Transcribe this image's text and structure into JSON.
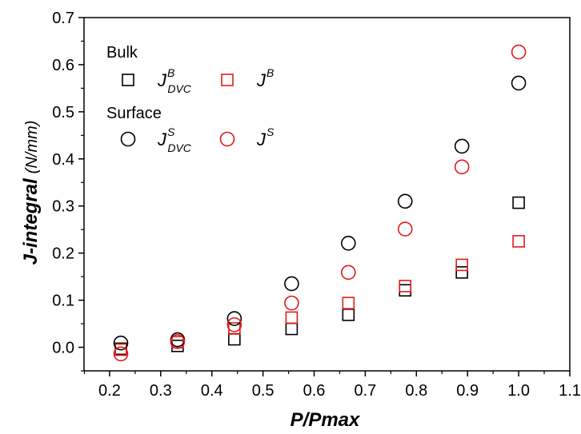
{
  "chart_data": {
    "type": "scatter",
    "xlabel": "P/Pmax",
    "ylabel": "J-integral",
    "ylabel_unit": "(N/mm)",
    "xlim": [
      0.15,
      1.1
    ],
    "ylim": [
      -0.05,
      0.7
    ],
    "xticks": [
      "0.2",
      "0.3",
      "0.4",
      "0.5",
      "0.6",
      "0.7",
      "0.8",
      "0.9",
      "1.0",
      "1.1"
    ],
    "yticks": [
      "0.0",
      "0.1",
      "0.2",
      "0.3",
      "0.4",
      "0.5",
      "0.6",
      "0.7"
    ],
    "grid": false,
    "legend_position": "top-left",
    "legend_groups": [
      {
        "title": "Bulk"
      },
      {
        "title": "Surface"
      }
    ],
    "series": [
      {
        "name": "J^B_DVC",
        "legend_main": "J",
        "legend_sup": "B",
        "legend_sub": "DVC",
        "marker": "square",
        "color": "#000000",
        "x": [
          0.222,
          0.333,
          0.444,
          0.556,
          0.667,
          0.778,
          0.889,
          1.0
        ],
        "y": [
          -0.003,
          0.003,
          0.017,
          0.039,
          0.069,
          0.121,
          0.159,
          0.307
        ]
      },
      {
        "name": "J^B",
        "legend_main": "J",
        "legend_sup": "B",
        "legend_sub": "",
        "marker": "square",
        "color": "#e31a1c",
        "x": [
          0.222,
          0.333,
          0.444,
          0.556,
          0.667,
          0.778,
          0.889,
          1.0
        ],
        "y": [
          -0.005,
          0.011,
          0.04,
          0.063,
          0.094,
          0.13,
          0.175,
          0.225
        ]
      },
      {
        "name": "J^S_DVC",
        "legend_main": "J",
        "legend_sup": "S",
        "legend_sub": "DVC",
        "marker": "circle",
        "color": "#000000",
        "x": [
          0.222,
          0.333,
          0.444,
          0.556,
          0.667,
          0.778,
          0.889,
          1.0
        ],
        "y": [
          0.009,
          0.016,
          0.061,
          0.135,
          0.221,
          0.31,
          0.427,
          0.561
        ]
      },
      {
        "name": "J^S",
        "legend_main": "J",
        "legend_sup": "S",
        "legend_sub": "",
        "marker": "circle",
        "color": "#e31a1c",
        "x": [
          0.222,
          0.333,
          0.444,
          0.556,
          0.667,
          0.778,
          0.889,
          1.0
        ],
        "y": [
          -0.014,
          0.012,
          0.048,
          0.094,
          0.159,
          0.251,
          0.383,
          0.627
        ]
      }
    ]
  }
}
